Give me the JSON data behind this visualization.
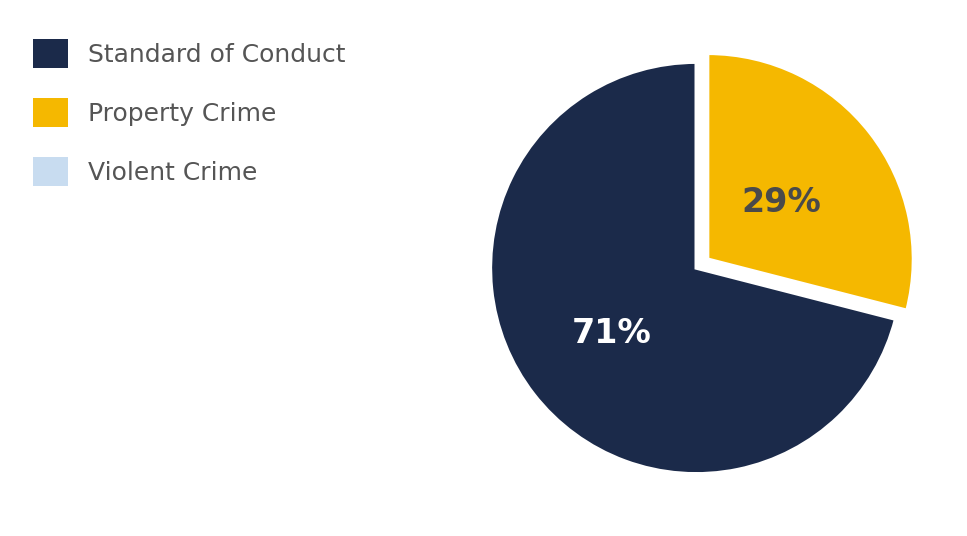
{
  "labels": [
    "Standard of Conduct",
    "Property Crime"
  ],
  "sizes": [
    71,
    29
  ],
  "colors": [
    "#1B2A4A",
    "#F5B800"
  ],
  "legend_labels": [
    "Standard of Conduct",
    "Property Crime",
    "Violent Crime"
  ],
  "legend_colors": [
    "#1B2A4A",
    "#F5B800",
    "#C8DCF0"
  ],
  "background_color": "#ffffff",
  "text_color_dark": "#555555",
  "pct_71_color": "#ffffff",
  "pct_29_color": "#4a4a4a",
  "label_font_size": 24,
  "legend_font_size": 18,
  "startangle": 90,
  "explode": [
    0,
    0.07
  ]
}
